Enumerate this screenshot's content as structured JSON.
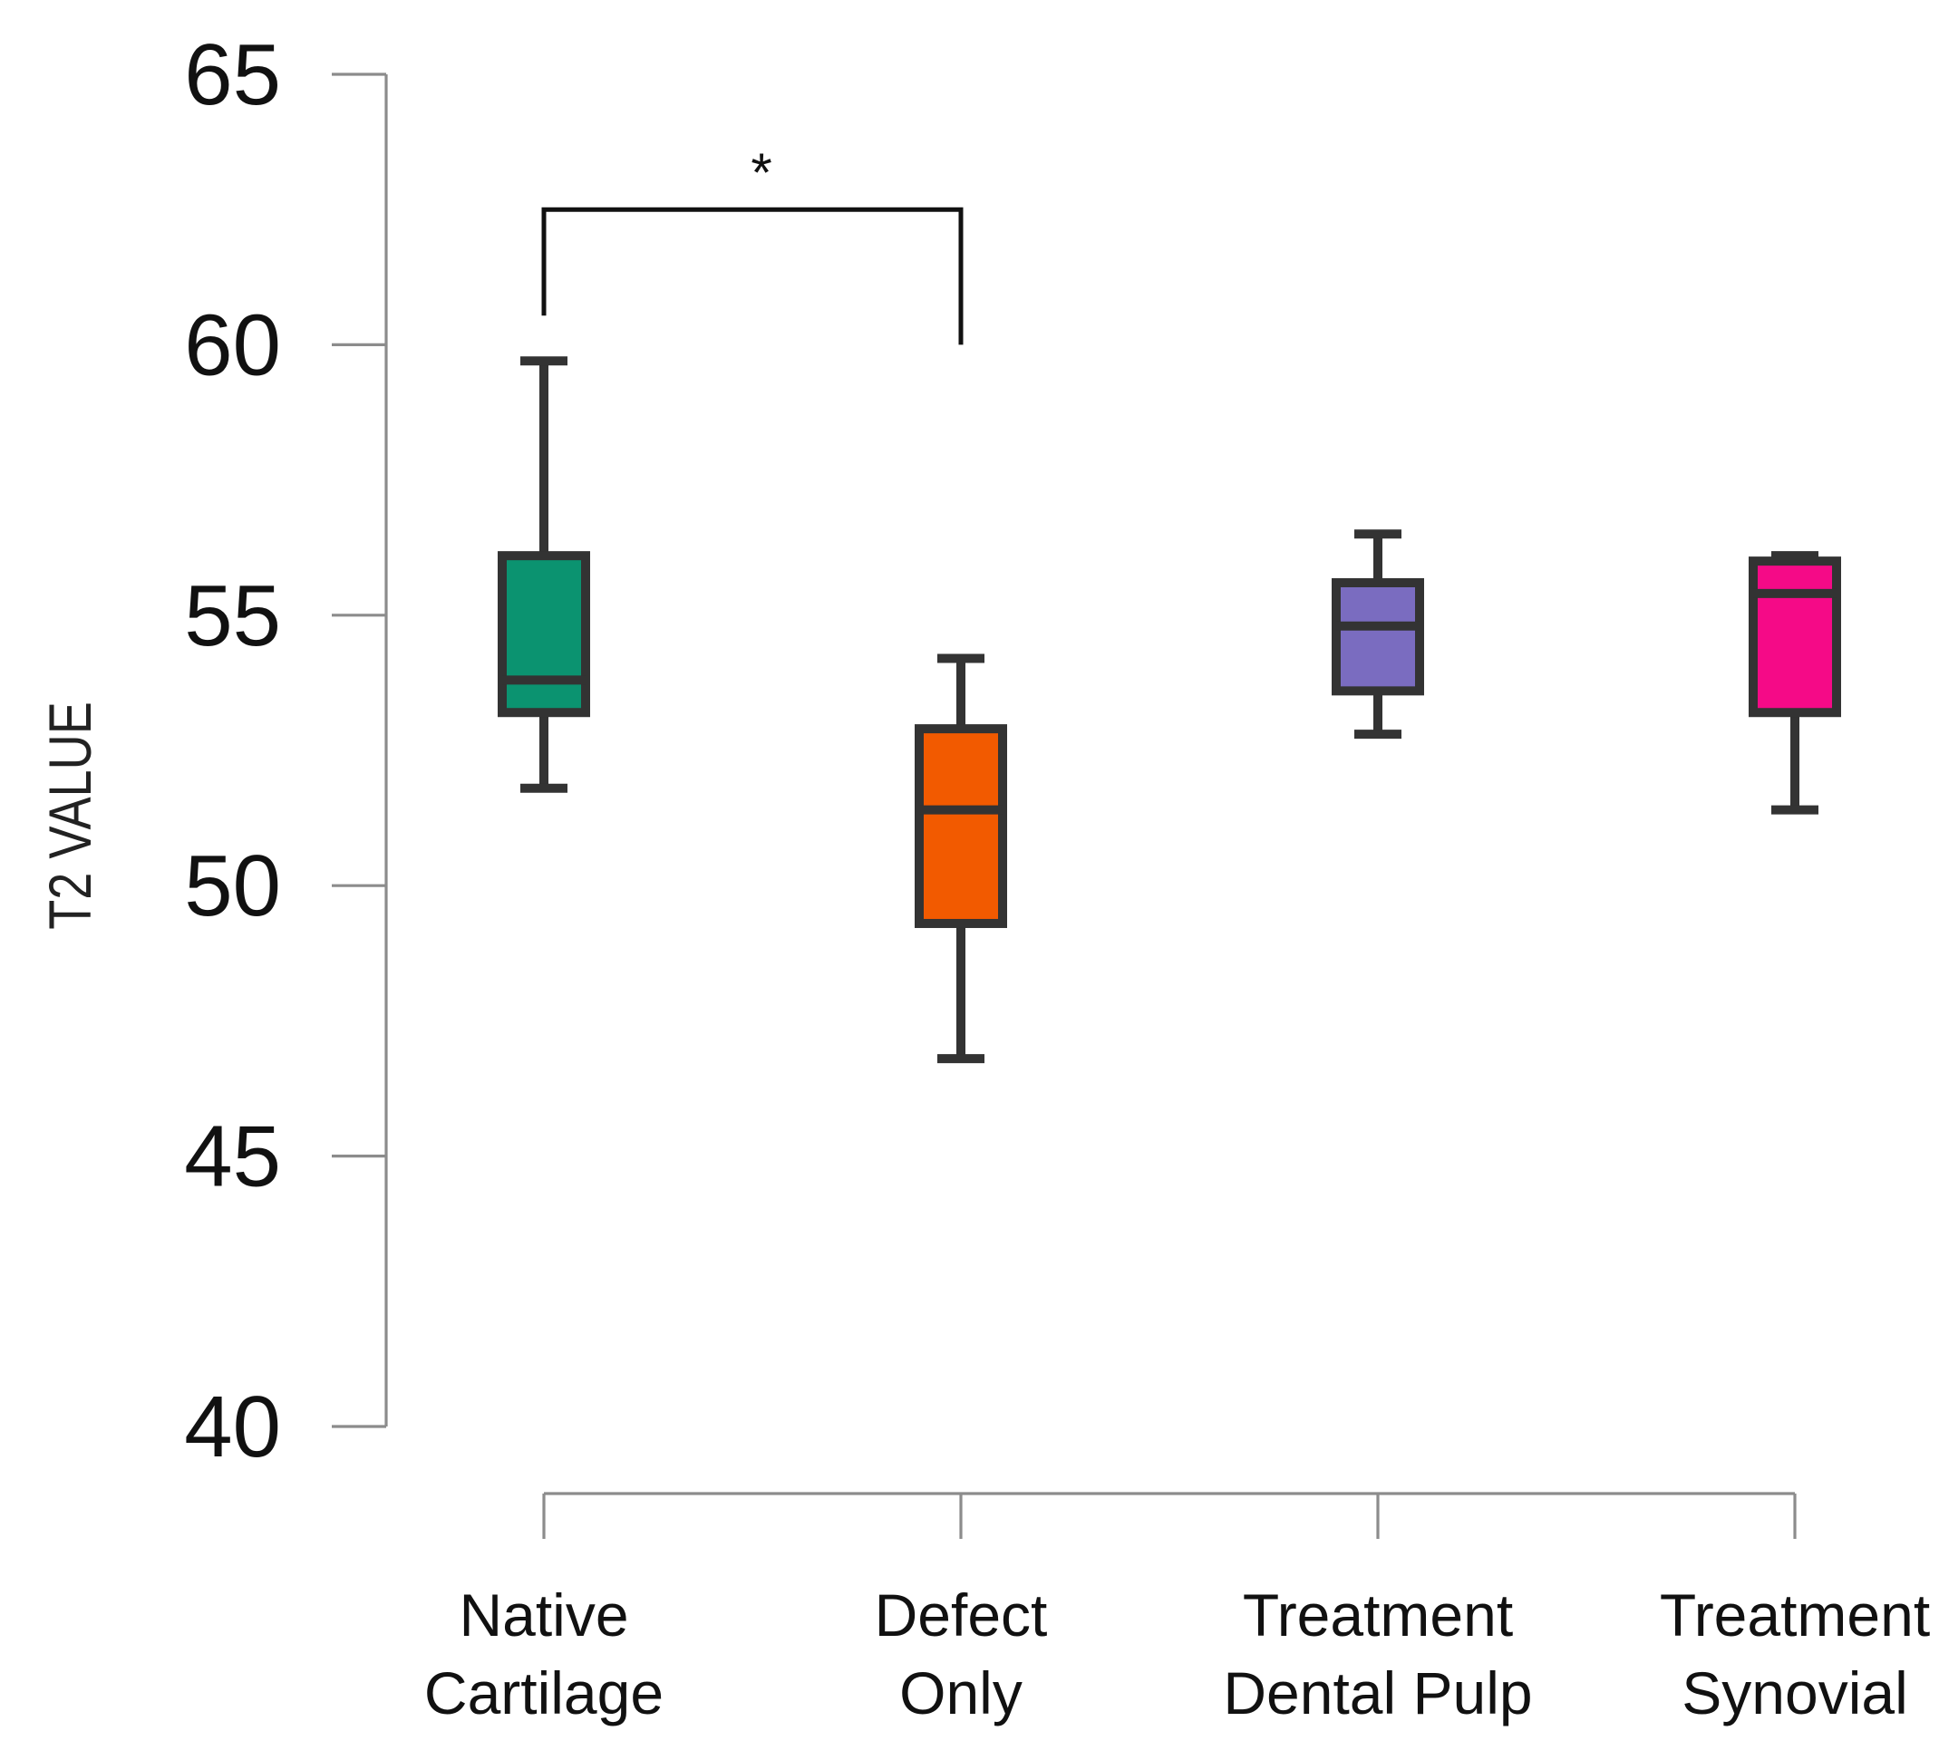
{
  "chart_data": {
    "type": "box",
    "title": "",
    "xlabel": "",
    "ylabel": "T2 VALUE",
    "ylim": [
      40,
      65
    ],
    "yticks": [
      40,
      45,
      50,
      55,
      60,
      65
    ],
    "grid": false,
    "legend": "none",
    "categories": [
      [
        "Native",
        "Cartilage"
      ],
      [
        "Defect",
        "Only"
      ],
      [
        "Treatment",
        "Dental Pulp"
      ],
      [
        "Treatment",
        "Synovial"
      ]
    ],
    "boxes": [
      {
        "whisker_low": 51.8,
        "q1": 53.2,
        "median": 53.8,
        "q3": 56.1,
        "whisker_high": 59.7,
        "color": "#0b9370"
      },
      {
        "whisker_low": 46.8,
        "q1": 49.3,
        "median": 51.4,
        "q3": 52.9,
        "whisker_high": 54.2,
        "color": "#f25a00"
      },
      {
        "whisker_low": 52.8,
        "q1": 53.6,
        "median": 54.8,
        "q3": 55.6,
        "whisker_high": 56.5,
        "color": "#7a6cc0"
      },
      {
        "whisker_low": 51.4,
        "q1": 53.2,
        "median": 55.4,
        "q3": 56.0,
        "whisker_high": 56.1,
        "color": "#f50a87"
      }
    ],
    "annotations": [
      {
        "type": "significance",
        "from": 0,
        "to": 1,
        "label": "*",
        "bracket_y": 62.5
      }
    ]
  }
}
